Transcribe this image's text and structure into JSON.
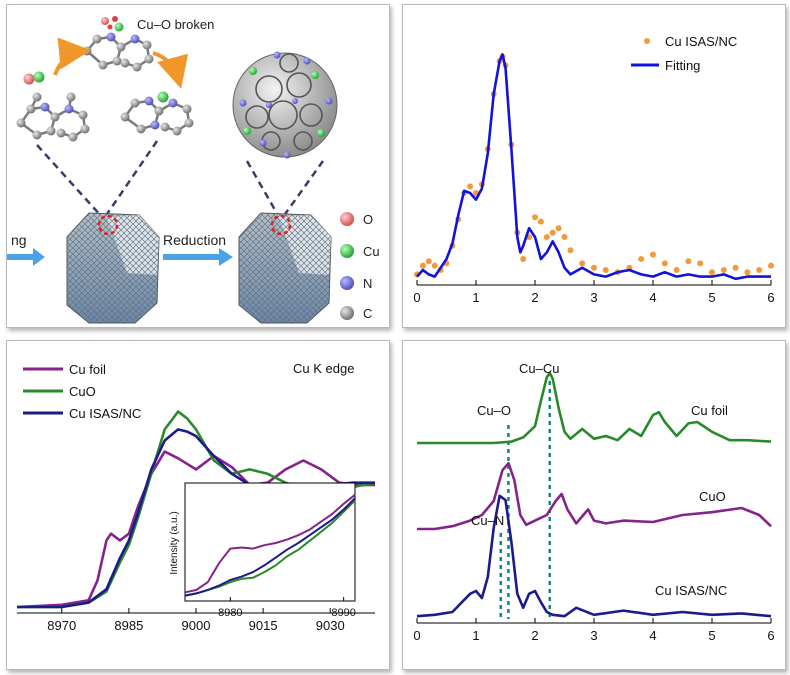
{
  "schematic": {
    "caption_top": "Cu–O broken",
    "arrow_left_label": "ng",
    "arrow_right_label": "Reduction",
    "legend": [
      {
        "label": "O",
        "color": "#e8797b"
      },
      {
        "label": "Cu",
        "color": "#3fcf5a"
      },
      {
        "label": "N",
        "color": "#6f6fe0"
      },
      {
        "label": "C",
        "color": "#8a8a8a"
      }
    ]
  },
  "chart_data": [
    {
      "type": "line",
      "xlim": [
        0,
        6
      ],
      "xticks": [
        "0",
        "1",
        "2",
        "3",
        "4",
        "5",
        "6"
      ],
      "series": [
        {
          "name": "Cu ISAS/NC",
          "style": "dots",
          "color": "#f29a3a",
          "x": [
            0.0,
            0.1,
            0.2,
            0.3,
            0.4,
            0.5,
            0.6,
            0.7,
            0.8,
            0.9,
            1.0,
            1.1,
            1.2,
            1.3,
            1.4,
            1.45,
            1.5,
            1.6,
            1.7,
            1.8,
            1.9,
            2.0,
            2.1,
            2.2,
            2.3,
            2.4,
            2.5,
            2.6,
            2.8,
            3.0,
            3.2,
            3.4,
            3.6,
            3.8,
            4.0,
            4.2,
            4.4,
            4.6,
            4.8,
            5.0,
            5.2,
            5.4,
            5.6,
            5.8,
            6.0
          ],
          "y": [
            0.03,
            0.07,
            0.09,
            0.07,
            0.05,
            0.08,
            0.16,
            0.28,
            0.4,
            0.43,
            0.4,
            0.44,
            0.6,
            0.85,
            1.0,
            1.02,
            0.98,
            0.62,
            0.22,
            0.1,
            0.2,
            0.29,
            0.27,
            0.2,
            0.22,
            0.24,
            0.2,
            0.14,
            0.08,
            0.06,
            0.05,
            0.04,
            0.06,
            0.1,
            0.12,
            0.08,
            0.05,
            0.09,
            0.08,
            0.04,
            0.05,
            0.06,
            0.04,
            0.05,
            0.07
          ]
        },
        {
          "name": "Fitting",
          "style": "line",
          "color": "#1212dd",
          "x": [
            0.0,
            0.1,
            0.2,
            0.3,
            0.4,
            0.5,
            0.6,
            0.7,
            0.8,
            0.9,
            1.0,
            1.1,
            1.2,
            1.3,
            1.4,
            1.45,
            1.5,
            1.6,
            1.7,
            1.75,
            1.8,
            1.9,
            2.0,
            2.1,
            2.2,
            2.3,
            2.4,
            2.5,
            2.6,
            2.8,
            3.0,
            3.2,
            3.4,
            3.6,
            3.8,
            4.0,
            4.2,
            4.4,
            4.6,
            4.8,
            5.0,
            5.2,
            5.4,
            5.6,
            5.8,
            6.0
          ],
          "y": [
            0.02,
            0.05,
            0.03,
            0.02,
            0.06,
            0.1,
            0.17,
            0.3,
            0.41,
            0.4,
            0.37,
            0.42,
            0.58,
            0.85,
            1.0,
            1.03,
            0.97,
            0.6,
            0.2,
            0.13,
            0.16,
            0.24,
            0.2,
            0.1,
            0.13,
            0.18,
            0.13,
            0.06,
            0.03,
            0.06,
            0.03,
            0.02,
            0.04,
            0.05,
            0.03,
            0.02,
            0.04,
            0.02,
            0.03,
            0.02,
            0.02,
            0.03,
            0.01,
            0.02,
            0.02,
            0.02
          ]
        }
      ]
    },
    {
      "type": "line",
      "title": "Cu K edge",
      "xlim": [
        8960,
        9040
      ],
      "xticks": [
        "8970",
        "8985",
        "9000",
        "9015",
        "9030"
      ],
      "series": [
        {
          "name": "Cu foil",
          "color": "#86238a",
          "x": [
            8960,
            8970,
            8976,
            8978,
            8980,
            8981,
            8983,
            8985,
            8987,
            8990,
            8993,
            8996,
            9000,
            9004,
            9008,
            9012,
            9016,
            9020,
            9024,
            9028,
            9032,
            9036,
            9040
          ],
          "y": [
            0.0,
            0.01,
            0.03,
            0.12,
            0.3,
            0.33,
            0.3,
            0.33,
            0.45,
            0.6,
            0.7,
            0.67,
            0.62,
            0.68,
            0.63,
            0.55,
            0.56,
            0.62,
            0.66,
            0.62,
            0.56,
            0.55,
            0.55
          ]
        },
        {
          "name": "CuO",
          "color": "#2a8a2a",
          "x": [
            8960,
            8970,
            8976,
            8980,
            8983,
            8985,
            8987,
            8990,
            8993,
            8996,
            8998,
            9000,
            9004,
            9008,
            9012,
            9016,
            9020,
            9025,
            9030,
            9035,
            9040
          ],
          "y": [
            0.0,
            0.0,
            0.02,
            0.07,
            0.2,
            0.28,
            0.4,
            0.6,
            0.8,
            0.88,
            0.85,
            0.8,
            0.66,
            0.6,
            0.62,
            0.6,
            0.56,
            0.53,
            0.51,
            0.54,
            0.56
          ]
        },
        {
          "name": "Cu ISAS/NC",
          "color": "#1b1b8a",
          "x": [
            8960,
            8970,
            8976,
            8980,
            8983,
            8985,
            8987,
            8990,
            8993,
            8996,
            8998,
            9000,
            9004,
            9008,
            9012,
            9016,
            9020,
            9025,
            9030,
            9035,
            9040
          ],
          "y": [
            0.0,
            0.0,
            0.02,
            0.08,
            0.22,
            0.3,
            0.42,
            0.62,
            0.75,
            0.8,
            0.79,
            0.77,
            0.68,
            0.6,
            0.55,
            0.53,
            0.52,
            0.54,
            0.55,
            0.56,
            0.56
          ]
        }
      ],
      "inset": {
        "ylabel": "Intensity (a.u.)",
        "xlim": [
          8976,
          8991
        ],
        "xticks": [
          "8980",
          "8990"
        ],
        "series": [
          {
            "name": "Cu foil",
            "color": "#86238a",
            "x": [
              8976,
              8977,
              8978,
              8979,
              8980,
              8981,
              8982,
              8983,
              8984,
              8985,
              8986,
              8987,
              8988,
              8989,
              8990,
              8991
            ],
            "y": [
              0.06,
              0.08,
              0.15,
              0.32,
              0.45,
              0.46,
              0.45,
              0.48,
              0.5,
              0.53,
              0.57,
              0.62,
              0.69,
              0.76,
              0.85,
              0.93
            ]
          },
          {
            "name": "CuO",
            "color": "#2a8a2a",
            "x": [
              8976,
              8977,
              8978,
              8979,
              8980,
              8981,
              8982,
              8983,
              8984,
              8985,
              8986,
              8987,
              8988,
              8989,
              8990,
              8991
            ],
            "y": [
              0.03,
              0.05,
              0.08,
              0.11,
              0.15,
              0.18,
              0.19,
              0.24,
              0.3,
              0.38,
              0.44,
              0.52,
              0.6,
              0.68,
              0.78,
              0.88
            ]
          },
          {
            "name": "Cu ISAS/NC",
            "color": "#1b1b8a",
            "x": [
              8976,
              8977,
              8978,
              8979,
              8980,
              8981,
              8982,
              8983,
              8984,
              8985,
              8986,
              8987,
              8988,
              8989,
              8990,
              8991
            ],
            "y": [
              0.03,
              0.05,
              0.08,
              0.12,
              0.17,
              0.2,
              0.24,
              0.3,
              0.37,
              0.44,
              0.5,
              0.57,
              0.64,
              0.71,
              0.8,
              0.9
            ]
          }
        ]
      }
    },
    {
      "type": "line",
      "xlim": [
        0,
        6
      ],
      "xticks": [
        "0",
        "1",
        "2",
        "3",
        "4",
        "5",
        "6"
      ],
      "annotations": [
        {
          "label": "Cu–Cu",
          "x": 2.25
        },
        {
          "label": "Cu–O",
          "x": 1.55
        },
        {
          "label": "Cu–N",
          "x": 1.42
        }
      ],
      "series": [
        {
          "name": "Cu foil",
          "color": "#2a8a2a",
          "x": [
            0.0,
            0.5,
            1.0,
            1.3,
            1.6,
            1.8,
            2.0,
            2.1,
            2.2,
            2.25,
            2.3,
            2.4,
            2.5,
            2.6,
            2.8,
            3.0,
            3.2,
            3.4,
            3.6,
            3.8,
            4.0,
            4.1,
            4.2,
            4.4,
            4.6,
            4.75,
            5.0,
            5.3,
            5.6,
            6.0
          ],
          "y": [
            0.0,
            0.0,
            0.0,
            0.0,
            0.01,
            0.04,
            0.12,
            0.3,
            0.47,
            0.5,
            0.46,
            0.25,
            0.08,
            0.03,
            0.1,
            0.03,
            0.05,
            0.02,
            0.1,
            0.05,
            0.2,
            0.22,
            0.15,
            0.05,
            0.14,
            0.15,
            0.08,
            0.02,
            0.02,
            0.01
          ]
        },
        {
          "name": "CuO",
          "color": "#86238a",
          "x": [
            0.0,
            0.3,
            0.6,
            0.9,
            1.1,
            1.3,
            1.45,
            1.55,
            1.65,
            1.75,
            1.85,
            2.0,
            2.2,
            2.35,
            2.45,
            2.55,
            2.7,
            2.9,
            3.0,
            3.2,
            3.5,
            4.0,
            4.5,
            5.0,
            5.5,
            5.8,
            6.0
          ],
          "y": [
            0.0,
            0.0,
            0.02,
            0.06,
            0.1,
            0.2,
            0.42,
            0.47,
            0.35,
            0.1,
            0.03,
            0.06,
            0.1,
            0.2,
            0.25,
            0.14,
            0.04,
            0.14,
            0.06,
            0.04,
            0.06,
            0.05,
            0.1,
            0.12,
            0.15,
            0.1,
            0.02
          ]
        },
        {
          "name": "Cu ISAS/NC",
          "color": "#1b1b8a",
          "x": [
            0.0,
            0.3,
            0.6,
            0.9,
            1.0,
            1.1,
            1.2,
            1.3,
            1.4,
            1.5,
            1.6,
            1.7,
            1.8,
            1.9,
            2.0,
            2.1,
            2.2,
            2.3,
            2.5,
            2.7,
            3.0,
            3.5,
            4.0,
            4.5,
            5.0,
            5.5,
            6.0
          ],
          "y": [
            0.02,
            0.03,
            0.05,
            0.18,
            0.2,
            0.15,
            0.3,
            0.65,
            0.88,
            0.85,
            0.55,
            0.18,
            0.08,
            0.18,
            0.2,
            0.12,
            0.05,
            0.03,
            0.02,
            0.08,
            0.03,
            0.06,
            0.03,
            0.05,
            0.03,
            0.04,
            0.02
          ]
        }
      ],
      "offsets_note_hidden": null
    }
  ]
}
